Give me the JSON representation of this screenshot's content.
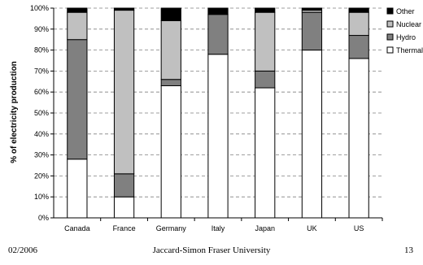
{
  "chart_data": {
    "type": "bar",
    "stacked": true,
    "ylabel": "% of electricity production",
    "ylim": [
      0,
      100
    ],
    "yticks": [
      0,
      10,
      20,
      30,
      40,
      50,
      60,
      70,
      80,
      90,
      100
    ],
    "ytick_labels": [
      "0%",
      "10%",
      "20%",
      "30%",
      "40%",
      "50%",
      "60%",
      "70%",
      "80%",
      "90%",
      "100%"
    ],
    "gridlines": "dashed horizontal",
    "legend_position": "right",
    "categories": [
      "Canada",
      "France",
      "Germany",
      "Italy",
      "Japan",
      "UK",
      "US"
    ],
    "series": [
      {
        "name": "Thermal",
        "color": "#ffffff",
        "values": [
          28,
          10,
          63,
          78,
          62,
          80,
          76
        ]
      },
      {
        "name": "Hydro",
        "color": "#808080",
        "values": [
          57,
          11,
          3,
          19,
          8,
          18,
          11
        ]
      },
      {
        "name": "Nuclear",
        "color": "#c0c0c0",
        "values": [
          13,
          78,
          28,
          0,
          28,
          1,
          11
        ]
      },
      {
        "name": "Other",
        "color": "#000000",
        "values": [
          2,
          1,
          6,
          3,
          2,
          1,
          2
        ]
      }
    ],
    "legend_order": [
      "Other",
      "Nuclear",
      "Hydro",
      "Thermal"
    ]
  },
  "footer": {
    "date": "02/2006",
    "center": "Jaccard-Simon Fraser University",
    "page": "13"
  }
}
